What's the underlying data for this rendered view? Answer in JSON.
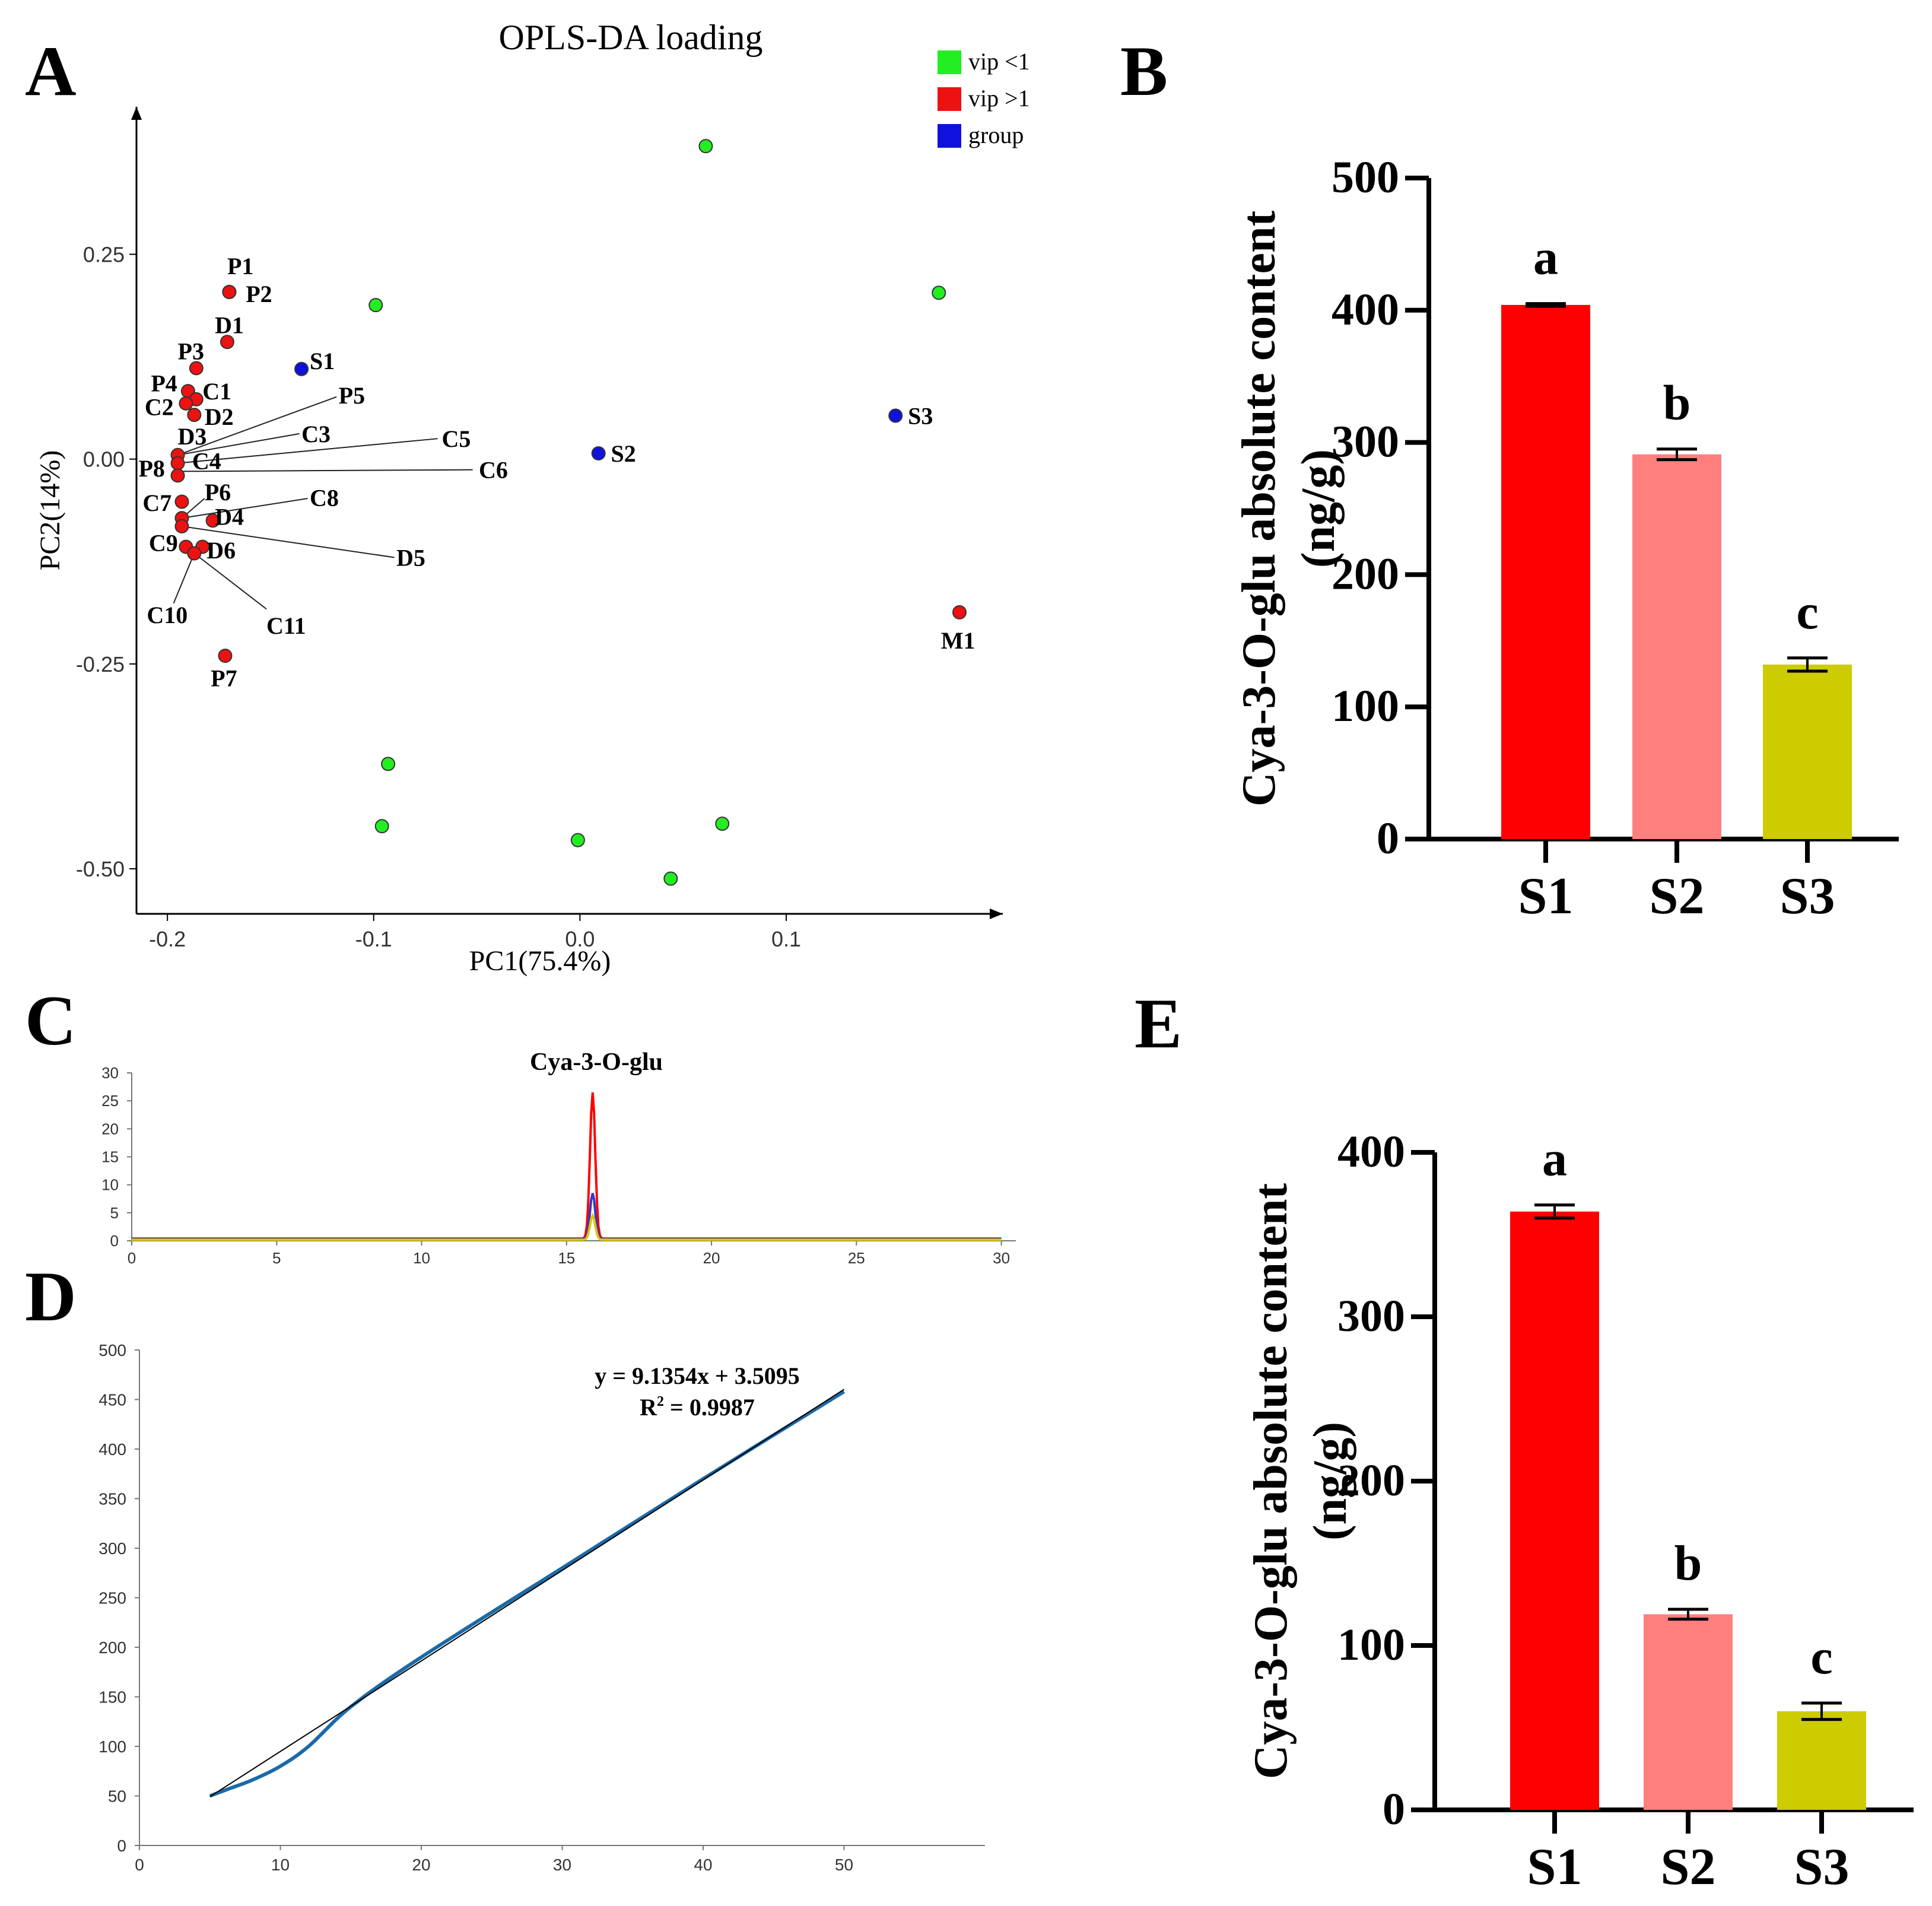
{
  "panels": {
    "a": "A",
    "b": "B",
    "c": "C",
    "d": "D",
    "e": "E"
  },
  "colors": {
    "vip_low": "#22ee22",
    "vip_high": "#ee1111",
    "group": "#1111dd",
    "bar_s1": "#ff0000",
    "bar_s2": "#ff7f7f",
    "bar_s3": "#cccc00",
    "chrom_red": "#ff0000",
    "chrom_blue": "#3333cc",
    "chrom_yellow": "#d8c800",
    "std_curve": "#1a6aa8",
    "trendline": "#000000"
  },
  "chart_data": [
    {
      "id": "A",
      "type": "scatter",
      "title": "OPLS-DA loading",
      "xlabel": "PC1(75.4%)",
      "ylabel": "PC2(14%)",
      "xlim": [
        -0.215,
        0.205
      ],
      "ylim": [
        -0.555,
        0.43
      ],
      "xticks": [
        -0.2,
        -0.1,
        0.0,
        0.1
      ],
      "xtick_labels": [
        "-0.2",
        "-0.1",
        "0.0",
        "0.1"
      ],
      "yticks": [
        0.25,
        0.0,
        -0.25,
        -0.5
      ],
      "ytick_labels": [
        "0.25",
        "0.00",
        "-0.25",
        "-0.50"
      ],
      "legend": [
        {
          "label": "vip <1",
          "color_key": "vip_low"
        },
        {
          "label": "vip >1",
          "color_key": "vip_high"
        },
        {
          "label": "group",
          "color_key": "group"
        }
      ],
      "legend_position": "top-right",
      "points": [
        {
          "x": 0.061,
          "y": 0.382,
          "cls": "vip_low"
        },
        {
          "x": 0.174,
          "y": 0.203,
          "cls": "vip_low"
        },
        {
          "x": -0.099,
          "y": 0.188,
          "cls": "vip_low"
        },
        {
          "x": -0.093,
          "y": -0.372,
          "cls": "vip_low"
        },
        {
          "x": -0.096,
          "y": -0.448,
          "cls": "vip_low"
        },
        {
          "x": -0.001,
          "y": -0.465,
          "cls": "vip_low"
        },
        {
          "x": 0.069,
          "y": -0.445,
          "cls": "vip_low"
        },
        {
          "x": 0.044,
          "y": -0.512,
          "cls": "vip_low"
        },
        {
          "x": -0.135,
          "y": 0.11,
          "cls": "group",
          "label": "S1",
          "lx": 0.004,
          "ly": 0.01
        },
        {
          "x": 0.009,
          "y": 0.007,
          "cls": "group",
          "label": "S2",
          "lx": 0.006,
          "ly": 0.0
        },
        {
          "x": 0.153,
          "y": 0.053,
          "cls": "group",
          "label": "S3",
          "lx": 0.006,
          "ly": 0.0
        },
        {
          "x": -0.17,
          "y": 0.204,
          "cls": "vip_high",
          "label": "P1",
          "lx": -0.001,
          "ly": 0.032
        },
        {
          "x": -0.17,
          "y": 0.204,
          "cls": "vip_high",
          "label": "P2",
          "lx": 0.008,
          "ly": -0.002
        },
        {
          "x": -0.171,
          "y": 0.143,
          "cls": "vip_high",
          "label": "D1",
          "lx": -0.006,
          "ly": 0.021
        },
        {
          "x": -0.186,
          "y": 0.111,
          "cls": "vip_high",
          "label": "P3",
          "lx": -0.009,
          "ly": 0.021
        },
        {
          "x": -0.19,
          "y": 0.083,
          "cls": "vip_high",
          "label": "P4",
          "lx": -0.018,
          "ly": 0.01
        },
        {
          "x": -0.186,
          "y": 0.073,
          "cls": "vip_high",
          "label": "C1",
          "lx": 0.003,
          "ly": 0.01
        },
        {
          "x": -0.191,
          "y": 0.068,
          "cls": "vip_high",
          "label": "C2",
          "lx": -0.02,
          "ly": -0.004
        },
        {
          "x": -0.187,
          "y": 0.054,
          "cls": "vip_high",
          "label": "D2",
          "lx": 0.005,
          "ly": -0.002
        },
        {
          "x": -0.195,
          "y": 0.005,
          "cls": "vip_high"
        },
        {
          "x": -0.195,
          "y": -0.005,
          "cls": "vip_high"
        },
        {
          "x": -0.195,
          "y": -0.02,
          "cls": "vip_high",
          "label": "P8",
          "lx": -0.019,
          "ly": 0.009
        },
        {
          "x": -0.193,
          "y": -0.052,
          "cls": "vip_high",
          "label": "C7",
          "lx": -0.019,
          "ly": -0.001
        },
        {
          "x": -0.193,
          "y": -0.072,
          "cls": "vip_high"
        },
        {
          "x": -0.193,
          "y": -0.082,
          "cls": "vip_high"
        },
        {
          "x": -0.178,
          "y": -0.075,
          "cls": "vip_high"
        },
        {
          "x": -0.191,
          "y": -0.107,
          "cls": "vip_high"
        },
        {
          "x": -0.183,
          "y": -0.107,
          "cls": "vip_high"
        },
        {
          "x": -0.187,
          "y": -0.115,
          "cls": "vip_high"
        },
        {
          "x": -0.172,
          "y": -0.24,
          "cls": "vip_high",
          "label": "P7",
          "lx": -0.007,
          "ly": -0.027
        },
        {
          "x": 0.184,
          "y": -0.187,
          "cls": "vip_high",
          "label": "M1",
          "lx": -0.009,
          "ly": -0.034
        }
      ],
      "leaders": [
        {
          "label": "D3",
          "fx": -0.195,
          "fy": 0.005,
          "tx": -0.193,
          "ty": 0.005,
          "lx": -0.195,
          "ly": 0.028
        },
        {
          "label": "C4",
          "fx": -0.195,
          "fy": -0.005,
          "tx": -0.195,
          "ty": -0.005,
          "lx": -0.188,
          "ly": -0.002
        },
        {
          "label": "P5",
          "fx": -0.195,
          "fy": 0.005,
          "tx": -0.118,
          "ty": 0.076,
          "lx": -0.117,
          "ly": 0.078
        },
        {
          "label": "C3",
          "fx": -0.195,
          "fy": 0.005,
          "tx": -0.136,
          "ty": 0.031,
          "lx": -0.135,
          "ly": 0.031
        },
        {
          "label": "C5",
          "fx": -0.195,
          "fy": -0.005,
          "tx": -0.069,
          "ty": 0.025,
          "lx": -0.067,
          "ly": 0.025
        },
        {
          "label": "C6",
          "fx": -0.195,
          "fy": -0.015,
          "tx": -0.052,
          "ty": -0.013,
          "lx": -0.049,
          "ly": -0.013
        },
        {
          "label": "P6",
          "fx": -0.193,
          "fy": -0.072,
          "tx": -0.182,
          "ty": -0.048,
          "lx": -0.182,
          "ly": -0.04
        },
        {
          "label": "D4",
          "fx": -0.178,
          "fy": -0.075,
          "tx": -0.176,
          "ty": -0.075,
          "lx": -0.177,
          "ly": -0.07
        },
        {
          "label": "C8",
          "fx": -0.193,
          "fy": -0.072,
          "tx": -0.132,
          "ty": -0.048,
          "lx": -0.131,
          "ly": -0.047
        },
        {
          "label": "D5",
          "fx": -0.193,
          "fy": -0.082,
          "tx": -0.09,
          "ty": -0.12,
          "lx": -0.089,
          "ly": -0.12
        },
        {
          "label": "C9",
          "fx": -0.191,
          "fy": -0.107,
          "tx": -0.191,
          "ty": -0.107,
          "lx": -0.209,
          "ly": -0.102
        },
        {
          "label": "D6",
          "fx": -0.183,
          "fy": -0.107,
          "tx": -0.181,
          "ty": -0.107,
          "lx": -0.181,
          "ly": -0.111
        },
        {
          "label": "C10",
          "fx": -0.187,
          "fy": -0.115,
          "tx": -0.197,
          "ty": -0.176,
          "lx": -0.21,
          "ly": -0.19
        },
        {
          "label": "C11",
          "fx": -0.187,
          "fy": -0.115,
          "tx": -0.152,
          "ty": -0.183,
          "lx": -0.152,
          "ly": -0.203
        }
      ]
    },
    {
      "id": "B",
      "type": "bar",
      "ylabel": "Cya-3-O-glu absolute content",
      "ylabel_unit": "(ng/g)",
      "categories": [
        "S1",
        "S2",
        "S3"
      ],
      "values": [
        404,
        291,
        132
      ],
      "errors": [
        1,
        4,
        5
      ],
      "letters": [
        "a",
        "b",
        "c"
      ],
      "color_keys": [
        "bar_s1",
        "bar_s2",
        "bar_s3"
      ],
      "ylim": [
        0,
        500
      ],
      "yticks": [
        0,
        100,
        200,
        300,
        400,
        500
      ],
      "ytick_labels": [
        "0",
        "100",
        "200",
        "300",
        "400",
        "500"
      ]
    },
    {
      "id": "C",
      "type": "line",
      "title": "Cya-3-O-glu",
      "xlim": [
        0,
        30.5
      ],
      "ylim": [
        0,
        30
      ],
      "xticks": [
        0,
        5,
        10,
        15,
        20,
        25,
        30
      ],
      "xtick_labels": [
        "0",
        "5",
        "10",
        "15",
        "20",
        "25",
        "30"
      ],
      "yticks": [
        0,
        5,
        10,
        15,
        20,
        25,
        30
      ],
      "ytick_labels": [
        "0",
        "5",
        "10",
        "15",
        "20",
        "25",
        "30"
      ],
      "series": [
        {
          "name": "S1",
          "color_key": "chrom_red",
          "peak_x": 15.9,
          "peak_y": 26.5,
          "baseline": 0.4
        },
        {
          "name": "S2",
          "color_key": "chrom_blue",
          "peak_x": 15.9,
          "peak_y": 8.5,
          "baseline": 0.3
        },
        {
          "name": "S3",
          "color_key": "chrom_yellow",
          "peak_x": 15.9,
          "peak_y": 4.5,
          "baseline": 0.2
        }
      ]
    },
    {
      "id": "D",
      "type": "line",
      "equation": "y = 9.1354x + 3.5095",
      "r2_label": "R",
      "r2_sup": "2",
      "r2_value": " = 0.9987",
      "xlim": [
        0,
        60
      ],
      "ylim": [
        0,
        500
      ],
      "xticks": [
        0,
        10,
        20,
        30,
        40,
        50
      ],
      "xtick_labels": [
        "0",
        "10",
        "20",
        "30",
        "40",
        "50"
      ],
      "yticks": [
        0,
        50,
        100,
        150,
        200,
        250,
        300,
        350,
        400,
        450,
        500
      ],
      "ytick_labels": [
        "0",
        "50",
        "100",
        "150",
        "200",
        "250",
        "300",
        "350",
        "400",
        "450",
        "500"
      ],
      "series": [
        {
          "name": "standard curve",
          "color_key": "std_curve",
          "x": [
            5,
            6.5,
            8,
            10,
            12,
            15,
            20,
            30,
            40,
            50
          ],
          "y": [
            50,
            58,
            66,
            80,
            100,
            140,
            190,
            280,
            370,
            458
          ]
        },
        {
          "name": "linear fit",
          "color_key": "trendline",
          "x": [
            5,
            50
          ],
          "y": [
            49.2,
            460.3
          ]
        }
      ]
    },
    {
      "id": "E",
      "type": "bar",
      "ylabel": "Cya-3-O-glu absolute content",
      "ylabel_unit": "(ng/g)",
      "categories": [
        "S1",
        "S2",
        "S3"
      ],
      "values": [
        364,
        119,
        60
      ],
      "errors": [
        4,
        3,
        5
      ],
      "letters": [
        "a",
        "b",
        "c"
      ],
      "color_keys": [
        "bar_s1",
        "bar_s2",
        "bar_s3"
      ],
      "ylim": [
        0,
        400
      ],
      "yticks": [
        0,
        100,
        200,
        300,
        400
      ],
      "ytick_labels": [
        "0",
        "100",
        "200",
        "300",
        "400"
      ]
    }
  ]
}
